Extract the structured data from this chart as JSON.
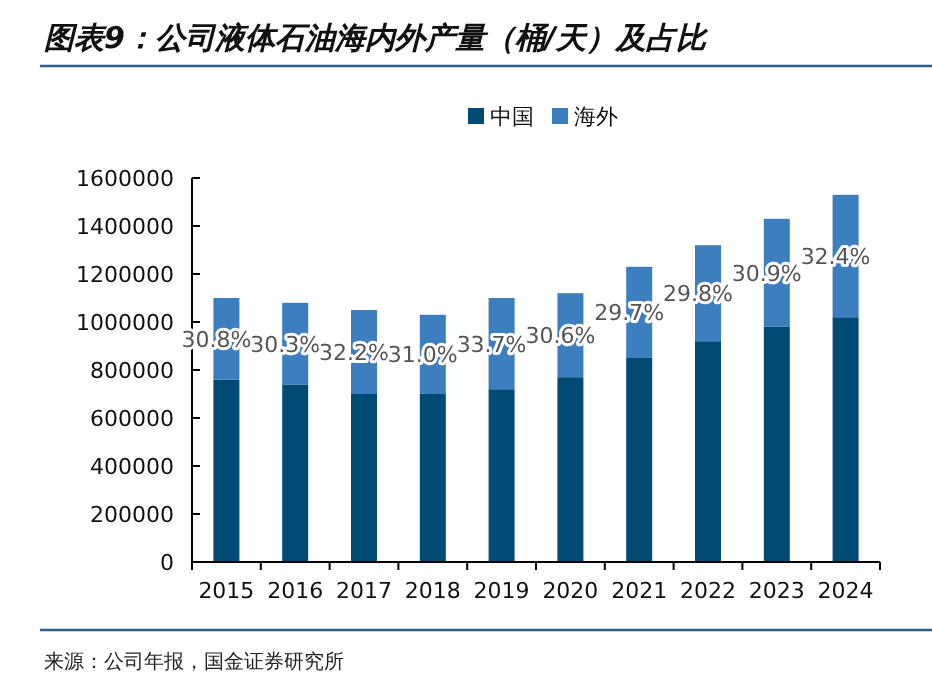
{
  "chart_data": {
    "type": "bar",
    "title": "图表9：公司液体石油海内外产量（桶/天）及占比",
    "categories": [
      "2015",
      "2016",
      "2017",
      "2018",
      "2019",
      "2020",
      "2021",
      "2022",
      "2023",
      "2024"
    ],
    "series": [
      {
        "name": "中国",
        "color": "#004a73",
        "values": [
          760000,
          740000,
          700000,
          700000,
          720000,
          770000,
          850000,
          920000,
          980000,
          1020000
        ]
      },
      {
        "name": "海外",
        "color": "#3d7ebf",
        "values": [
          340000,
          340000,
          350000,
          330000,
          380000,
          350000,
          380000,
          400000,
          450000,
          510000
        ]
      }
    ],
    "stacked": true,
    "ylim": [
      0,
      1600000
    ],
    "yticks": [
      0,
      200000,
      400000,
      600000,
      800000,
      1000000,
      1200000,
      1400000,
      1600000
    ],
    "legend": "top",
    "annotations": [
      "30.8%",
      "30.3%",
      "32.2%",
      "31.0%",
      "33.7%",
      "30.6%",
      "29.7%",
      "29.8%",
      "30.9%",
      "32.4%",
      "来源：公司年报，国金证券研究所"
    ]
  }
}
